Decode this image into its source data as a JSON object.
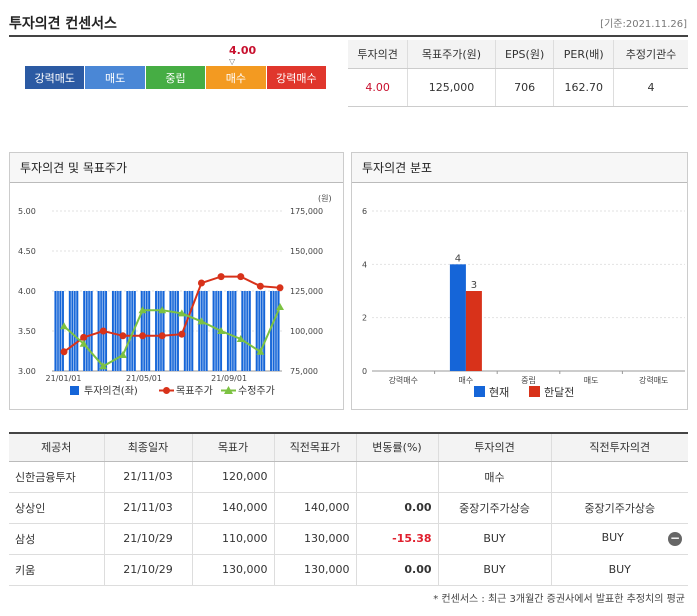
{
  "header": {
    "title": "투자의견 컨센서스",
    "date": "[기준:2021.11.26]"
  },
  "opinion": {
    "current_value": "4.00",
    "marker": "▽",
    "scale": [
      {
        "label": "강력매도",
        "color": "#2b5aa3"
      },
      {
        "label": "매도",
        "color": "#4a87d6"
      },
      {
        "label": "중립",
        "color": "#46ad44"
      },
      {
        "label": "매수",
        "color": "#f39a21"
      },
      {
        "label": "강력매수",
        "color": "#e0362c"
      }
    ]
  },
  "summary": {
    "headers": [
      "투자의견",
      "목표주가(원)",
      "EPS(원)",
      "PER(배)",
      "추정기관수"
    ],
    "values": [
      "4.00",
      "125,000",
      "706",
      "162.70",
      "4"
    ]
  },
  "left_panel": {
    "title": "투자의견 및 목표주가"
  },
  "right_panel": {
    "title": "투자의견 분포"
  },
  "chart_data": [
    {
      "type": "bar+line",
      "unit_label": "(원)",
      "x_ticks": [
        "21/01/01",
        "21/05/01",
        "21/09/01"
      ],
      "y_left": {
        "ticks": [
          "5.00",
          "4.50",
          "4.00",
          "3.50",
          "3.00"
        ],
        "range": [
          3.0,
          5.0
        ]
      },
      "y_right": {
        "ticks": [
          "175,000",
          "150,000",
          "125,000",
          "100,000",
          "75,000"
        ],
        "range": [
          75000,
          175000
        ]
      },
      "opinion_bars": [
        4,
        4,
        4,
        4,
        4,
        4,
        4,
        4,
        4,
        4,
        4,
        4,
        4,
        4,
        4,
        4
      ],
      "target_price": [
        87000,
        96000,
        100000,
        97000,
        97000,
        97000,
        98000,
        130000,
        134000,
        134000,
        128000,
        127000
      ],
      "adj_price": [
        103000,
        92000,
        78000,
        85000,
        113000,
        113000,
        111000,
        106000,
        100000,
        95000,
        87000,
        115000
      ],
      "legend": [
        {
          "name": "투자의견(좌)",
          "color": "#1565d8",
          "shape": "square"
        },
        {
          "name": "목표주가",
          "color": "#d8321a",
          "shape": "dot"
        },
        {
          "name": "수정주가",
          "color": "#7cc242",
          "shape": "triangle"
        }
      ],
      "colors": {
        "bar": "#1565d8",
        "target": "#d8321a",
        "adj": "#7cc242"
      }
    },
    {
      "type": "bar",
      "categories": [
        "강력매수",
        "매수",
        "중립",
        "매도",
        "강력매도"
      ],
      "y_ticks": [
        "6",
        "4",
        "2",
        "0"
      ],
      "y_range": [
        0,
        6
      ],
      "series": [
        {
          "name": "현재",
          "values": [
            0,
            4,
            0,
            0,
            0
          ],
          "color": "#1565d8"
        },
        {
          "name": "한달전",
          "values": [
            0,
            3,
            0,
            0,
            0
          ],
          "color": "#d8321a"
        }
      ],
      "data_labels": [
        "4",
        "3"
      ]
    }
  ],
  "table": {
    "headers": [
      "제공처",
      "최종일자",
      "목표가",
      "직전목표가",
      "변동률(%)",
      "투자의견",
      "직전투자의견"
    ],
    "rows": [
      [
        "신한금융투자",
        "21/11/03",
        "120,000",
        "",
        "",
        "매수",
        ""
      ],
      [
        "상상인",
        "21/11/03",
        "140,000",
        "140,000",
        "0.00",
        "중장기주가상승",
        "중장기주가상승"
      ],
      [
        "삼성",
        "21/10/29",
        "110,000",
        "130,000",
        "-15.38",
        "BUY",
        "BUY"
      ],
      [
        "키움",
        "21/10/29",
        "130,000",
        "130,000",
        "0.00",
        "BUY",
        "BUY"
      ]
    ],
    "collapse_icon": "−"
  },
  "footnote": "* 컨센서스 : 최근 3개월간 증권사에서 발표한 추정치의 평균"
}
